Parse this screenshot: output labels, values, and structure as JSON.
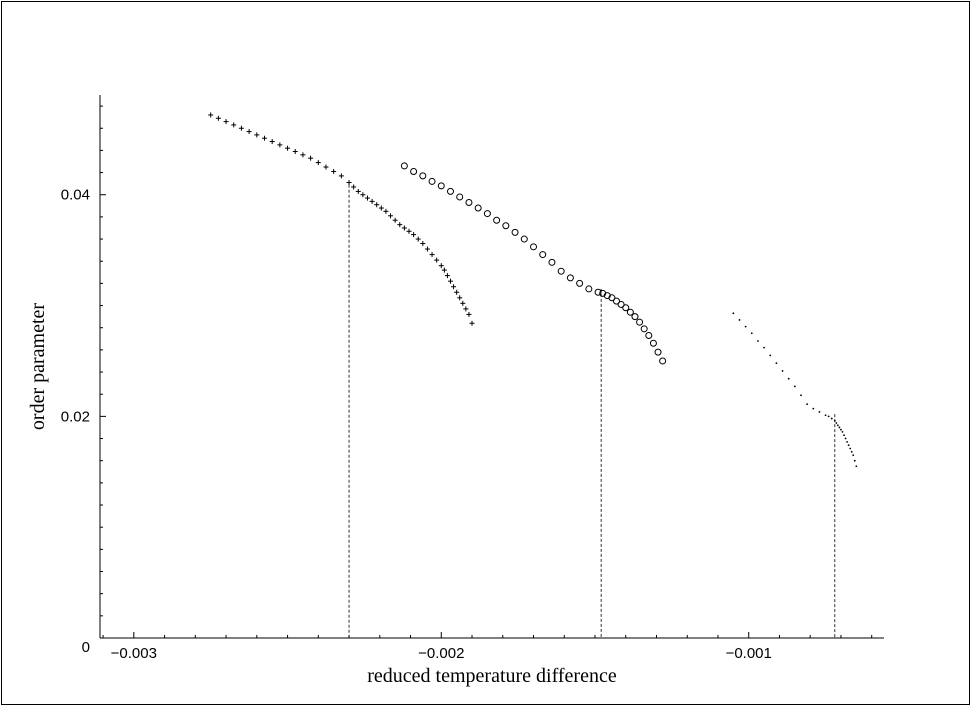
{
  "chart_data": {
    "type": "scatter",
    "title": "",
    "xlabel": "reduced temperature difference",
    "ylabel": "order parameter",
    "xlim": [
      -0.00311,
      -0.00056
    ],
    "ylim": [
      0,
      0.049
    ],
    "x_ticks": [
      {
        "value": -0.003,
        "label": "−0.003"
      },
      {
        "value": -0.002,
        "label": "−0.002"
      },
      {
        "value": -0.001,
        "label": "−0.001"
      }
    ],
    "y_ticks": [
      {
        "value": 0,
        "label": "0"
      },
      {
        "value": 0.02,
        "label": "0.02"
      },
      {
        "value": 0.04,
        "label": "0.04"
      }
    ],
    "grid": false,
    "legend": "none",
    "series": [
      {
        "marker": "cross",
        "color": "#000000",
        "x": [
          -0.00275,
          -0.002725,
          -0.0027,
          -0.002675,
          -0.00265,
          -0.002625,
          -0.0026,
          -0.002575,
          -0.00255,
          -0.002525,
          -0.0025,
          -0.002475,
          -0.00245,
          -0.002425,
          -0.0024,
          -0.002375,
          -0.00235,
          -0.002325,
          -0.0023,
          -0.002285,
          -0.00227,
          -0.002255,
          -0.00224,
          -0.002225,
          -0.00221,
          -0.002195,
          -0.00218,
          -0.002165,
          -0.00215,
          -0.002135,
          -0.00212,
          -0.002105,
          -0.00209,
          -0.002075,
          -0.00206,
          -0.002045,
          -0.00203,
          -0.002015,
          -0.002,
          -0.00199,
          -0.00198,
          -0.00197,
          -0.00196,
          -0.00195,
          -0.00194,
          -0.00193,
          -0.00192,
          -0.00191,
          -0.0019
        ],
        "y": [
          0.0472,
          0.0469,
          0.0466,
          0.0463,
          0.046,
          0.0457,
          0.0454,
          0.0451,
          0.0448,
          0.0445,
          0.0442,
          0.0439,
          0.0436,
          0.0433,
          0.0429,
          0.0425,
          0.0421,
          0.0417,
          0.0411,
          0.0407,
          0.0403,
          0.04,
          0.0397,
          0.0394,
          0.0391,
          0.0388,
          0.0385,
          0.0381,
          0.0377,
          0.0373,
          0.037,
          0.0367,
          0.0364,
          0.036,
          0.0356,
          0.0351,
          0.0346,
          0.0341,
          0.0336,
          0.0332,
          0.0327,
          0.0322,
          0.0317,
          0.0312,
          0.0307,
          0.0302,
          0.0297,
          0.0292,
          0.0284
        ]
      },
      {
        "marker": "circle",
        "color": "#000000",
        "x": [
          -0.00212,
          -0.00209,
          -0.00206,
          -0.00203,
          -0.002,
          -0.00197,
          -0.00194,
          -0.00191,
          -0.00188,
          -0.00185,
          -0.00182,
          -0.00179,
          -0.00176,
          -0.00173,
          -0.0017,
          -0.00167,
          -0.00164,
          -0.00161,
          -0.00158,
          -0.00155,
          -0.00152,
          -0.00149,
          -0.001475,
          -0.00146,
          -0.001445,
          -0.00143,
          -0.001415,
          -0.0014,
          -0.001385,
          -0.00137,
          -0.001355,
          -0.00134,
          -0.001325,
          -0.00131,
          -0.001295,
          -0.00128
        ],
        "y": [
          0.0426,
          0.0421,
          0.0417,
          0.0412,
          0.0408,
          0.0403,
          0.0398,
          0.0393,
          0.0388,
          0.0383,
          0.0377,
          0.0372,
          0.0366,
          0.036,
          0.0353,
          0.0346,
          0.0339,
          0.0331,
          0.0325,
          0.032,
          0.0315,
          0.0312,
          0.0311,
          0.0309,
          0.0307,
          0.0304,
          0.0301,
          0.0298,
          0.0294,
          0.029,
          0.0285,
          0.0279,
          0.0273,
          0.0266,
          0.0258,
          0.025
        ]
      },
      {
        "marker": "dot",
        "color": "#000000",
        "x": [
          -0.00105,
          -0.00103,
          -0.00101,
          -0.00099,
          -0.00097,
          -0.00095,
          -0.00093,
          -0.00091,
          -0.00089,
          -0.00087,
          -0.00085,
          -0.00083,
          -0.00081,
          -0.00079,
          -0.00077,
          -0.00075,
          -0.00074,
          -0.00073,
          -0.00072,
          -0.000715,
          -0.00071,
          -0.000705,
          -0.0007,
          -0.000695,
          -0.00069,
          -0.000685,
          -0.00068,
          -0.000675,
          -0.00067,
          -0.000665,
          -0.00066,
          -0.000655,
          -0.00065
        ],
        "y": [
          0.0293,
          0.0287,
          0.0281,
          0.0275,
          0.0268,
          0.0262,
          0.0255,
          0.0248,
          0.0241,
          0.0234,
          0.0227,
          0.0219,
          0.0211,
          0.0207,
          0.0204,
          0.0201,
          0.02,
          0.0198,
          0.0196,
          0.0194,
          0.0192,
          0.019,
          0.0188,
          0.0186,
          0.0183,
          0.018,
          0.0177,
          0.0174,
          0.0171,
          0.0168,
          0.0165,
          0.016,
          0.0155
        ]
      }
    ],
    "vlines": [
      {
        "x": -0.0023,
        "y": 0.0409
      },
      {
        "x": -0.00148,
        "y": 0.0315
      },
      {
        "x": -0.00072,
        "y": 0.0202
      }
    ]
  }
}
